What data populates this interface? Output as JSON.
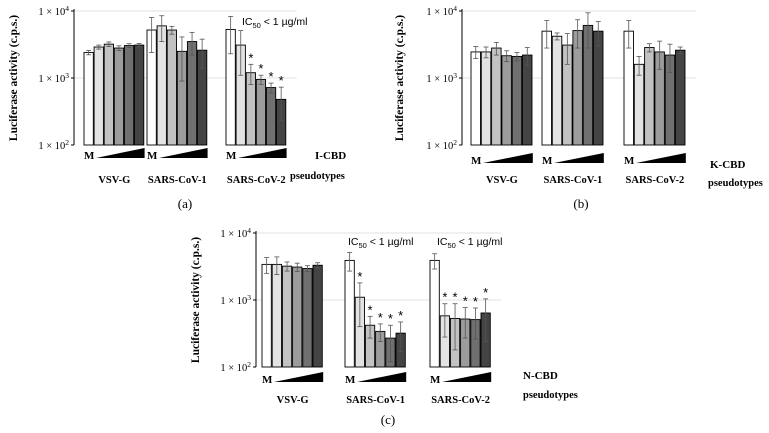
{
  "chart_data": [
    {
      "type": "bar",
      "panel_label": "(a)",
      "compound": "I-CBD",
      "xlabel": "pseudotypes",
      "ylabel": "Luciferase activity (c.p.s.)",
      "y_scale": "log",
      "ylim": [
        100,
        10000
      ],
      "y_ticks": [
        "1 × 10²",
        "1 × 10³",
        "1 × 10⁴"
      ],
      "ramp_label": "M",
      "bar_fills": [
        "#ffffff",
        "#e3e3e3",
        "#c2c2c2",
        "#9c9c9c",
        "#707070",
        "#444444",
        "#111111"
      ],
      "groups": [
        {
          "name": "VSV-G",
          "values": [
            2400,
            2900,
            3200,
            2800,
            3050,
            3100
          ],
          "errors": [
            180,
            200,
            250,
            220,
            200,
            170
          ],
          "significant": [
            false,
            false,
            false,
            false,
            false,
            false
          ],
          "ic50": ""
        },
        {
          "name": "SARS-CoV-1",
          "values": [
            5200,
            6000,
            5200,
            2500,
            3500,
            2600
          ],
          "errors": [
            2800,
            2500,
            700,
            1600,
            1300,
            1200
          ],
          "significant": [
            false,
            false,
            false,
            false,
            false,
            false
          ],
          "ic50": ""
        },
        {
          "name": "SARS-CoV-2",
          "values": [
            5300,
            3100,
            1200,
            950,
            720,
            480
          ],
          "errors": [
            3000,
            2000,
            400,
            150,
            120,
            250
          ],
          "significant": [
            false,
            false,
            true,
            true,
            true,
            true
          ],
          "ic50": "IC50 < 1 µg/ml"
        }
      ]
    },
    {
      "type": "bar",
      "panel_label": "(b)",
      "compound": "K-CBD",
      "xlabel": "pseudotypes",
      "ylabel": "Luciferase activity (c.p.s.)",
      "y_scale": "log",
      "ylim": [
        100,
        10000
      ],
      "y_ticks": [
        "1 × 10²",
        "1 × 10³",
        "1 × 10⁴"
      ],
      "ramp_label": "M",
      "bar_fills": [
        "#ffffff",
        "#e3e3e3",
        "#c2c2c2",
        "#9c9c9c",
        "#707070",
        "#444444",
        "#111111"
      ],
      "groups": [
        {
          "name": "VSV-G",
          "values": [
            2450,
            2450,
            2800,
            2150,
            2100,
            2200
          ],
          "errors": [
            500,
            450,
            600,
            400,
            300,
            650
          ],
          "significant": [
            false,
            false,
            false,
            false,
            false,
            false
          ],
          "ic50": ""
        },
        {
          "name": "SARS-CoV-1",
          "values": [
            5000,
            4200,
            3100,
            5100,
            6100,
            5000
          ],
          "errors": [
            2200,
            500,
            1500,
            2300,
            3300,
            2000
          ],
          "significant": [
            false,
            false,
            false,
            false,
            false,
            false
          ],
          "ic50": ""
        },
        {
          "name": "SARS-CoV-2",
          "values": [
            5000,
            1600,
            2850,
            2450,
            2200,
            2600
          ],
          "errors": [
            2200,
            500,
            400,
            1100,
            1000,
            300
          ],
          "significant": [
            false,
            false,
            false,
            false,
            false,
            false
          ],
          "ic50": ""
        }
      ]
    },
    {
      "type": "bar",
      "panel_label": "(c)",
      "compound": "N-CBD",
      "xlabel": "pseudotypes",
      "ylabel": "Luciferase activity (c.p.s.)",
      "y_scale": "log",
      "ylim": [
        100,
        10000
      ],
      "y_ticks": [
        "1 × 10²",
        "1 × 10³",
        "1 × 10⁴"
      ],
      "ramp_label": "M",
      "bar_fills": [
        "#ffffff",
        "#e3e3e3",
        "#c2c2c2",
        "#9c9c9c",
        "#707070",
        "#444444",
        "#111111"
      ],
      "groups": [
        {
          "name": "VSV-G",
          "values": [
            3400,
            3400,
            3200,
            3100,
            2950,
            3300
          ],
          "errors": [
            900,
            1000,
            500,
            450,
            300,
            300
          ],
          "significant": [
            false,
            false,
            false,
            false,
            false,
            false
          ],
          "ic50": ""
        },
        {
          "name": "SARS-CoV-1",
          "values": [
            3900,
            1100,
            420,
            340,
            270,
            320
          ],
          "errors": [
            1200,
            700,
            150,
            100,
            150,
            150
          ],
          "significant": [
            false,
            true,
            true,
            true,
            true,
            true
          ],
          "ic50": "IC50 < 1 µg/ml"
        },
        {
          "name": "SARS-CoV-2",
          "values": [
            3900,
            580,
            530,
            520,
            510,
            640
          ],
          "errors": [
            1000,
            300,
            350,
            250,
            250,
            400
          ],
          "significant": [
            false,
            true,
            true,
            true,
            true,
            true
          ],
          "ic50": "IC50 < 1 µg/ml"
        }
      ]
    }
  ]
}
